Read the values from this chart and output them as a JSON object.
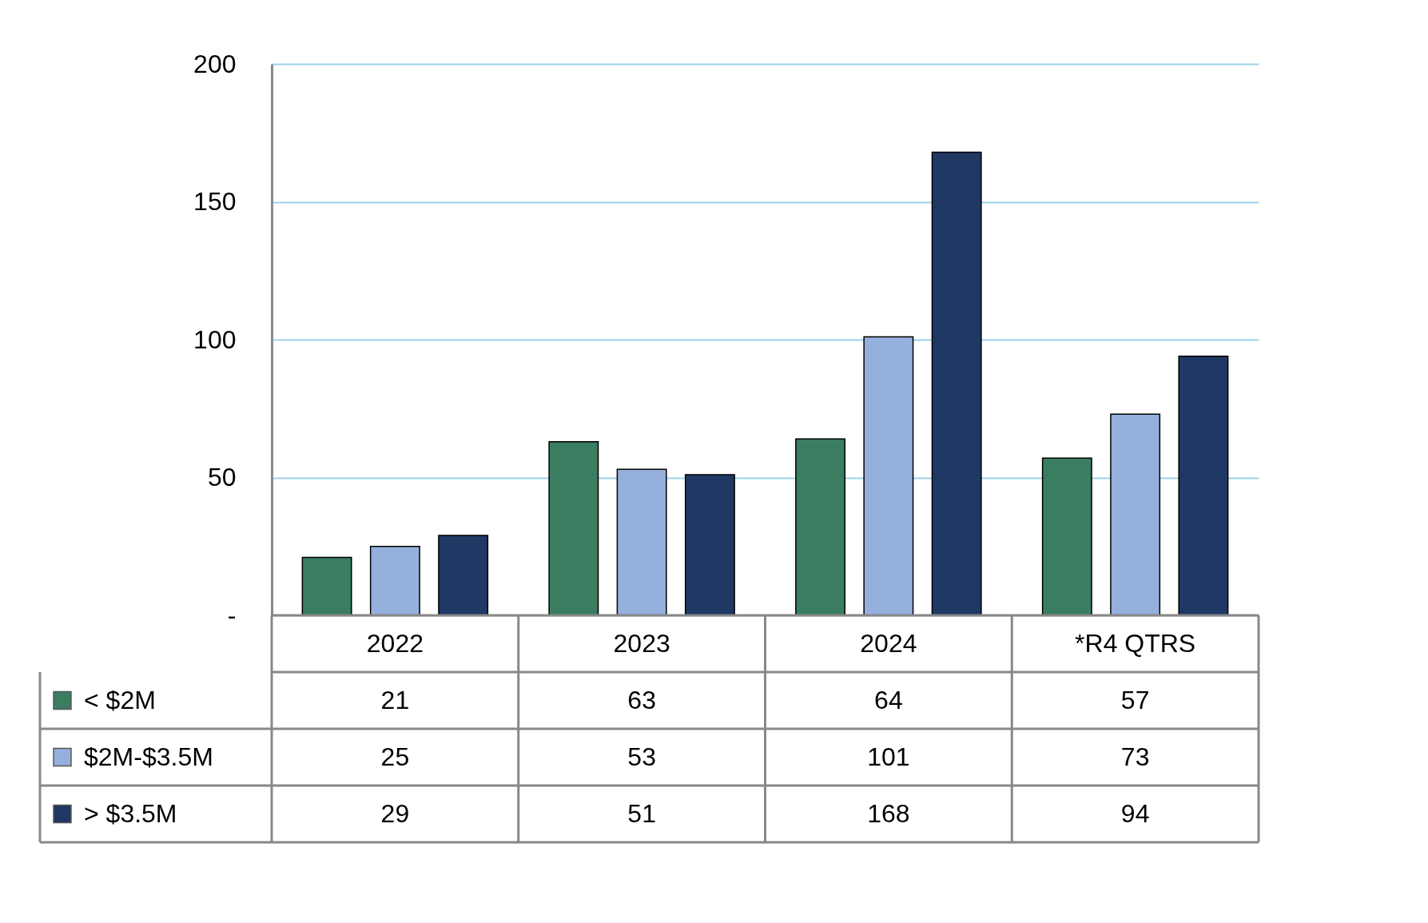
{
  "chart_data": {
    "type": "bar",
    "categories": [
      "2022",
      "2023",
      "2024",
      "*R4 QTRS"
    ],
    "series": [
      {
        "name": "< $2M",
        "color": "#3a7d60",
        "values": [
          21,
          63,
          64,
          57
        ]
      },
      {
        "name": "$2M-$3.5M",
        "color": "#95b0dd",
        "values": [
          25,
          53,
          101,
          73
        ]
      },
      {
        "name": "> $3.5M",
        "color": "#1f3864",
        "values": [
          29,
          51,
          168,
          94
        ]
      }
    ],
    "ylim": [
      0,
      200
    ],
    "yticks": [
      {
        "value": 0,
        "label": "-"
      },
      50,
      100,
      150,
      200
    ],
    "grid": "y",
    "legend": "bottom",
    "data_labels": true
  }
}
